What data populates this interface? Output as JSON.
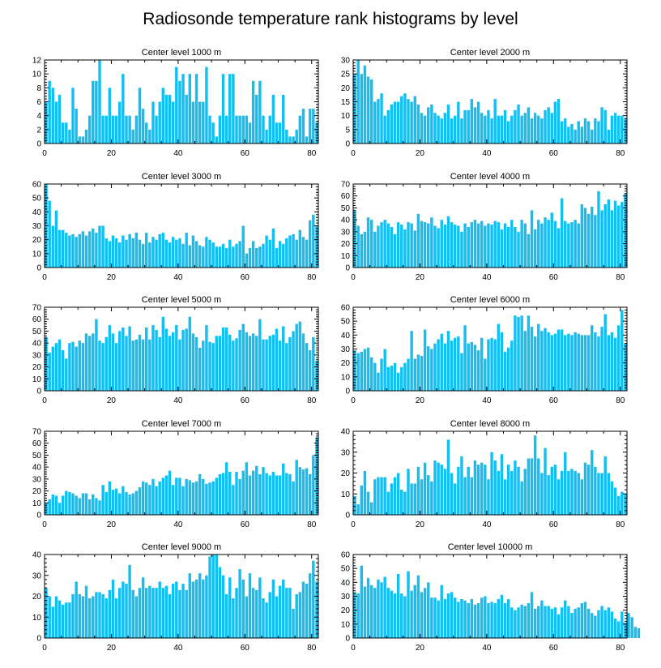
{
  "title": "Radiosonde temperature rank histograms by level",
  "colors": {
    "bar": "#13bff0",
    "axis": "#000000"
  },
  "chart_data": [
    {
      "type": "bar",
      "title": "Center level 1000 m",
      "xlim": [
        0,
        82
      ],
      "ylim": [
        0,
        12
      ],
      "xticks": [
        0,
        20,
        40,
        60,
        80
      ],
      "yticks": [
        0,
        2,
        4,
        6,
        8,
        10,
        12
      ],
      "values": [
        6,
        9,
        8,
        6,
        7,
        3,
        3,
        2,
        8,
        5,
        1,
        1,
        2,
        4,
        9,
        9,
        12,
        4,
        4,
        8,
        4,
        4,
        6,
        10,
        4,
        4,
        2,
        4,
        8,
        5,
        3,
        2,
        6,
        4,
        6,
        8,
        7,
        7,
        6,
        11,
        9,
        10,
        7,
        10,
        6,
        10,
        6,
        6,
        11,
        4,
        3,
        1,
        4,
        10,
        4,
        10,
        10,
        4,
        4,
        4,
        4,
        3,
        9,
        7,
        9,
        4,
        2,
        4,
        7,
        3,
        3,
        7,
        2,
        1,
        1,
        2,
        4,
        5,
        1,
        5,
        5,
        3
      ]
    },
    {
      "type": "bar",
      "title": "Center level 2000 m",
      "xlim": [
        0,
        82
      ],
      "ylim": [
        0,
        30
      ],
      "xticks": [
        0,
        20,
        40,
        60,
        80
      ],
      "yticks": [
        0,
        5,
        10,
        15,
        20,
        25,
        30
      ],
      "values": [
        25,
        30,
        25,
        28,
        24,
        23,
        15,
        16,
        18,
        10,
        12,
        14,
        15,
        15,
        17,
        18,
        16,
        15,
        17,
        14,
        11,
        10,
        13,
        14,
        11,
        10,
        9,
        11,
        14,
        9,
        10,
        15,
        9,
        12,
        12,
        16,
        13,
        15,
        11,
        10,
        12,
        9,
        16,
        10,
        10,
        12,
        8,
        10,
        12,
        14,
        10,
        11,
        13,
        9,
        11,
        10,
        9,
        12,
        13,
        11,
        15,
        16,
        8,
        9,
        6,
        7,
        5,
        8,
        6,
        9,
        8,
        5,
        9,
        8,
        13,
        12,
        5,
        10,
        11,
        10,
        10,
        9
      ]
    },
    {
      "type": "bar",
      "title": "Center level 3000 m",
      "xlim": [
        0,
        82
      ],
      "ylim": [
        0,
        60
      ],
      "xticks": [
        0,
        20,
        40,
        60,
        80
      ],
      "yticks": [
        0,
        10,
        20,
        30,
        40,
        50,
        60
      ],
      "values": [
        60,
        48,
        30,
        41,
        27,
        27,
        25,
        23,
        24,
        22,
        24,
        26,
        23,
        26,
        28,
        25,
        30,
        30,
        21,
        19,
        23,
        21,
        18,
        23,
        20,
        24,
        21,
        25,
        20,
        17,
        25,
        18,
        22,
        20,
        24,
        25,
        20,
        18,
        22,
        20,
        21,
        17,
        25,
        16,
        23,
        19,
        16,
        15,
        22,
        20,
        18,
        15,
        15,
        17,
        14,
        20,
        15,
        17,
        19,
        30,
        10,
        14,
        19,
        14,
        15,
        17,
        23,
        20,
        28,
        14,
        19,
        17,
        21,
        23,
        24,
        20,
        27,
        22,
        20,
        34,
        38,
        30
      ]
    },
    {
      "type": "bar",
      "title": "Center level 4000 m",
      "xlim": [
        0,
        82
      ],
      "ylim": [
        0,
        70
      ],
      "xticks": [
        0,
        20,
        40,
        60,
        80
      ],
      "yticks": [
        0,
        10,
        20,
        30,
        40,
        50,
        60,
        70
      ],
      "values": [
        48,
        35,
        28,
        30,
        42,
        40,
        30,
        35,
        38,
        40,
        37,
        34,
        28,
        38,
        36,
        32,
        38,
        37,
        31,
        45,
        39,
        38,
        37,
        42,
        35,
        33,
        40,
        36,
        43,
        38,
        36,
        35,
        30,
        37,
        34,
        38,
        40,
        37,
        39,
        35,
        37,
        36,
        39,
        38,
        32,
        37,
        34,
        40,
        34,
        30,
        40,
        37,
        28,
        48,
        32,
        40,
        37,
        42,
        40,
        46,
        39,
        33,
        58,
        39,
        37,
        38,
        40,
        37,
        53,
        50,
        45,
        51,
        44,
        64,
        48,
        53,
        57,
        48,
        56,
        52,
        55,
        62
      ]
    },
    {
      "type": "bar",
      "title": "Center level 5000 m",
      "xlim": [
        0,
        82
      ],
      "ylim": [
        0,
        70
      ],
      "xticks": [
        0,
        20,
        40,
        60,
        80
      ],
      "yticks": [
        0,
        10,
        20,
        30,
        40,
        50,
        60,
        70
      ],
      "values": [
        45,
        32,
        37,
        40,
        43,
        34,
        27,
        40,
        41,
        37,
        42,
        40,
        48,
        46,
        48,
        60,
        42,
        40,
        45,
        55,
        48,
        40,
        50,
        53,
        46,
        54,
        42,
        43,
        47,
        43,
        53,
        43,
        55,
        51,
        45,
        62,
        52,
        46,
        49,
        55,
        43,
        51,
        52,
        62,
        48,
        45,
        36,
        42,
        55,
        41,
        40,
        46,
        46,
        53,
        53,
        47,
        42,
        44,
        51,
        56,
        49,
        46,
        48,
        46,
        60,
        43,
        43,
        46,
        47,
        52,
        42,
        54,
        40,
        45,
        50,
        56,
        58,
        48,
        40,
        34,
        45,
        25
      ]
    },
    {
      "type": "bar",
      "title": "Center level 6000 m",
      "xlim": [
        0,
        82
      ],
      "ylim": [
        0,
        60
      ],
      "xticks": [
        0,
        20,
        40,
        60,
        80
      ],
      "yticks": [
        0,
        10,
        20,
        30,
        40,
        50,
        60
      ],
      "values": [
        29,
        27,
        28,
        30,
        31,
        24,
        20,
        13,
        23,
        30,
        17,
        18,
        20,
        13,
        17,
        20,
        23,
        43,
        23,
        26,
        25,
        44,
        32,
        30,
        34,
        37,
        41,
        34,
        43,
        36,
        38,
        39,
        27,
        47,
        34,
        35,
        33,
        29,
        38,
        23,
        37,
        38,
        37,
        48,
        42,
        28,
        31,
        36,
        54,
        53,
        54,
        43,
        54,
        46,
        39,
        48,
        43,
        45,
        42,
        40,
        41,
        44,
        44,
        40,
        41,
        40,
        42,
        41,
        40,
        40,
        40,
        47,
        42,
        39,
        46,
        55,
        40,
        42,
        38,
        47,
        58,
        34
      ]
    },
    {
      "type": "bar",
      "title": "Center level 7000 m",
      "xlim": [
        0,
        82
      ],
      "ylim": [
        0,
        70
      ],
      "xticks": [
        0,
        20,
        40,
        60,
        80
      ],
      "yticks": [
        0,
        10,
        20,
        30,
        40,
        50,
        60,
        70
      ],
      "values": [
        10,
        13,
        17,
        16,
        10,
        16,
        20,
        19,
        18,
        16,
        14,
        18,
        18,
        13,
        17,
        14,
        12,
        25,
        19,
        28,
        21,
        22,
        18,
        24,
        19,
        17,
        18,
        20,
        23,
        28,
        27,
        25,
        30,
        24,
        28,
        31,
        33,
        37,
        25,
        31,
        31,
        24,
        30,
        29,
        27,
        28,
        34,
        30,
        26,
        27,
        28,
        31,
        34,
        35,
        44,
        36,
        25,
        36,
        30,
        37,
        44,
        33,
        37,
        41,
        34,
        40,
        35,
        33,
        36,
        33,
        33,
        43,
        35,
        34,
        28,
        46,
        40,
        38,
        39,
        34,
        50,
        65
      ]
    },
    {
      "type": "bar",
      "title": "Center level 8000 m",
      "xlim": [
        0,
        82
      ],
      "ylim": [
        0,
        40
      ],
      "xticks": [
        0,
        20,
        40,
        60,
        80
      ],
      "yticks": [
        0,
        10,
        20,
        30,
        40
      ],
      "values": [
        9,
        5,
        14,
        21,
        11,
        6,
        17,
        18,
        18,
        18,
        11,
        15,
        18,
        20,
        12,
        11,
        22,
        15,
        15,
        23,
        17,
        25,
        19,
        16,
        26,
        25,
        24,
        22,
        36,
        20,
        15,
        23,
        28,
        18,
        23,
        18,
        26,
        24,
        25,
        24,
        17,
        30,
        26,
        21,
        29,
        17,
        24,
        21,
        26,
        23,
        16,
        22,
        27,
        27,
        38,
        27,
        20,
        32,
        19,
        23,
        24,
        17,
        21,
        30,
        21,
        22,
        21,
        20,
        17,
        25,
        24,
        31,
        23,
        20,
        20,
        28,
        20,
        16,
        13,
        9,
        11,
        10
      ]
    },
    {
      "type": "bar",
      "title": "Center level 9000 m",
      "xlim": [
        0,
        82
      ],
      "ylim": [
        0,
        40
      ],
      "xticks": [
        0,
        20,
        40,
        60,
        80
      ],
      "yticks": [
        0,
        10,
        20,
        30,
        40
      ],
      "values": [
        24,
        20,
        15,
        20,
        18,
        16,
        17,
        17,
        21,
        27,
        21,
        20,
        25,
        19,
        20,
        22,
        22,
        21,
        19,
        23,
        28,
        19,
        24,
        27,
        26,
        35,
        23,
        20,
        24,
        29,
        24,
        25,
        24,
        24,
        27,
        24,
        25,
        21,
        26,
        27,
        23,
        26,
        23,
        31,
        27,
        28,
        31,
        28,
        30,
        39,
        40,
        40,
        34,
        30,
        21,
        29,
        19,
        24,
        33,
        28,
        20,
        31,
        24,
        23,
        29,
        19,
        17,
        22,
        28,
        20,
        25,
        28,
        24,
        24,
        14,
        21,
        22,
        27,
        26,
        31,
        37,
        27
      ]
    },
    {
      "type": "bar",
      "title": "Center level 10000 m",
      "xlim": [
        0,
        82
      ],
      "ylim": [
        0,
        60
      ],
      "xticks": [
        0,
        20,
        40,
        60,
        80
      ],
      "yticks": [
        0,
        10,
        20,
        30,
        40,
        50,
        60
      ],
      "values": [
        33,
        32,
        52,
        37,
        43,
        38,
        36,
        42,
        40,
        44,
        36,
        34,
        32,
        46,
        32,
        30,
        48,
        34,
        38,
        45,
        33,
        36,
        40,
        29,
        29,
        27,
        38,
        28,
        32,
        33,
        29,
        26,
        28,
        27,
        25,
        28,
        24,
        25,
        29,
        30,
        25,
        26,
        25,
        28,
        31,
        25,
        28,
        22,
        20,
        22,
        24,
        23,
        25,
        33,
        21,
        23,
        27,
        23,
        23,
        21,
        22,
        17,
        22,
        27,
        23,
        18,
        21,
        22,
        25,
        26,
        21,
        18,
        16,
        20,
        23,
        20,
        22,
        19,
        14,
        12,
        19,
        11,
        18,
        15,
        8,
        7
      ]
    }
  ]
}
